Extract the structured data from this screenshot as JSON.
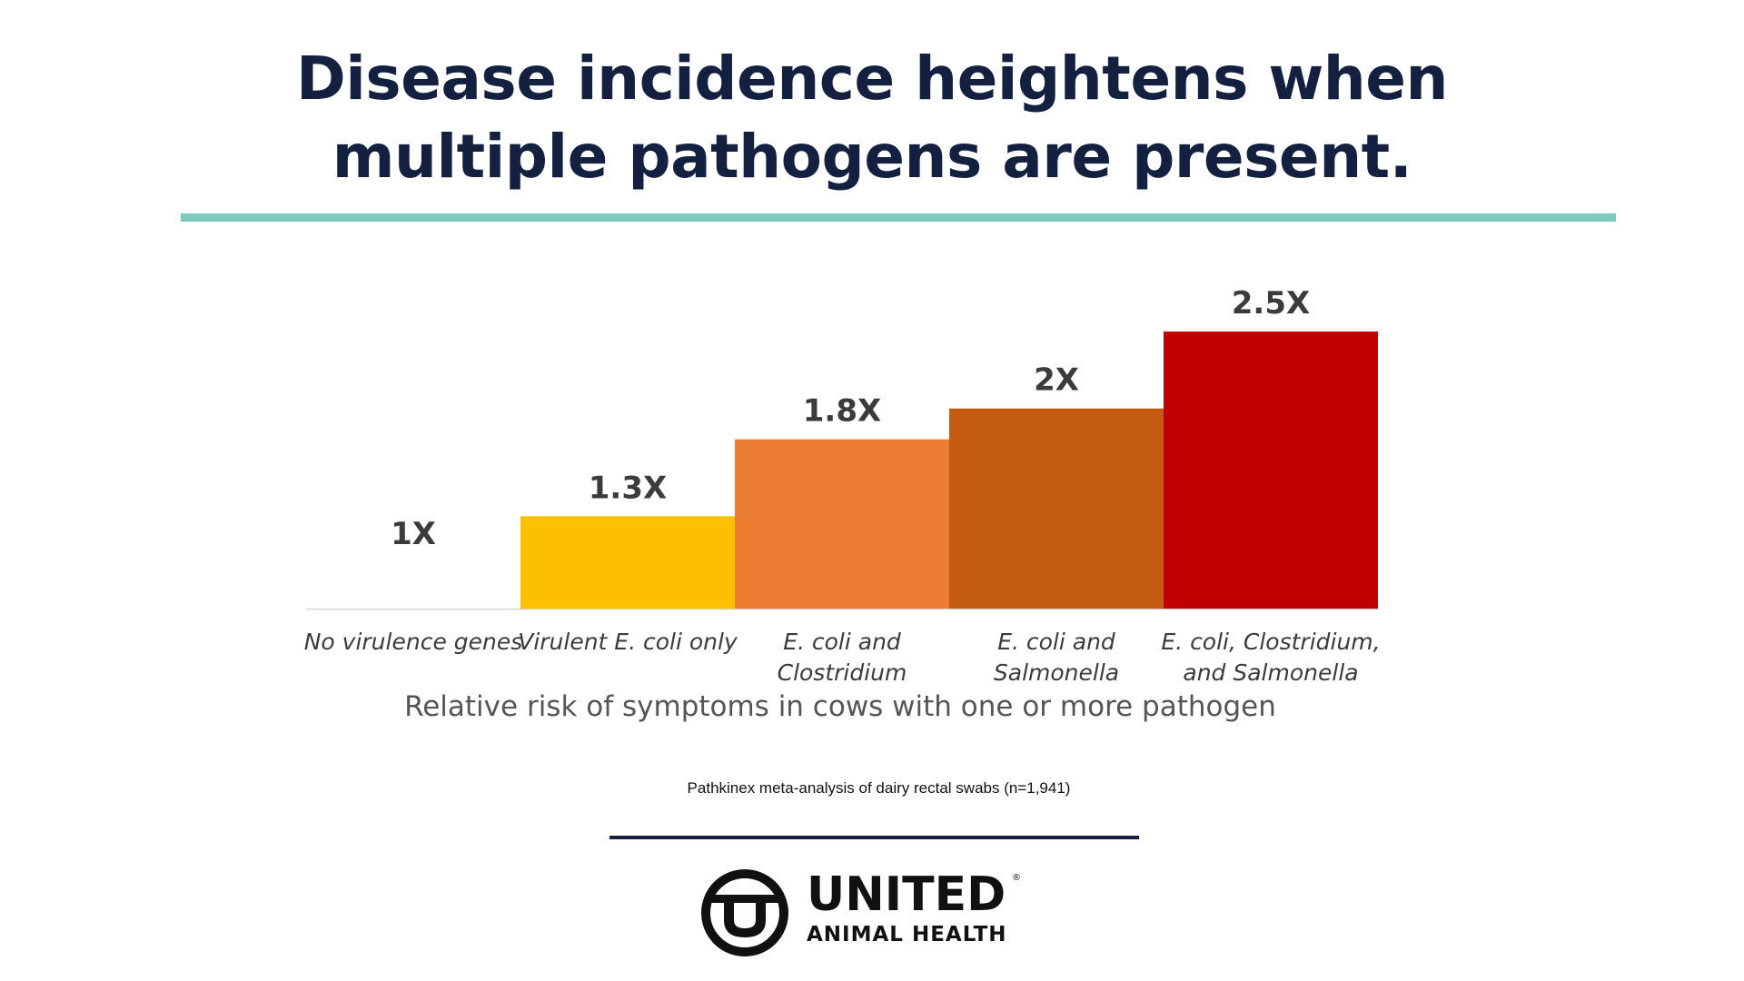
{
  "header": {
    "title_lines": [
      "Disease incidence heightens when",
      "multiple pathogens are present."
    ],
    "accent_color": "#7ccabc",
    "title_color": "#14203f"
  },
  "chart_data": {
    "type": "bar",
    "title": "",
    "xlabel": "Relative risk of symptoms in cows with one or more pathogen",
    "ylabel": "",
    "ylim": [
      0.7,
      2.5
    ],
    "grid": false,
    "categories": [
      [
        "No virulence genes"
      ],
      [
        "Virulent E. coli only"
      ],
      [
        "E. coli and",
        "Clostridium"
      ],
      [
        "E. coli and",
        "Salmonella"
      ],
      [
        "E. coli, Clostridium,",
        "and Salmonella"
      ]
    ],
    "values": [
      1.0,
      1.3,
      1.8,
      2.0,
      2.5
    ],
    "data_labels": [
      "1X",
      "1.3X",
      "1.8X",
      "2X",
      "2.5X"
    ],
    "colors": [
      "#ffffff",
      "#fdc000",
      "#ec7d32",
      "#c55a11",
      "#c00000"
    ]
  },
  "footer": {
    "source": "Pathkinex meta-analysis of dairy rectal swabs (n=1,941)",
    "brand_name": "UNITED",
    "brand_sub": "ANIMAL HEALTH",
    "brand_mark": "®",
    "logo_icon": "united-u-logo-icon"
  }
}
